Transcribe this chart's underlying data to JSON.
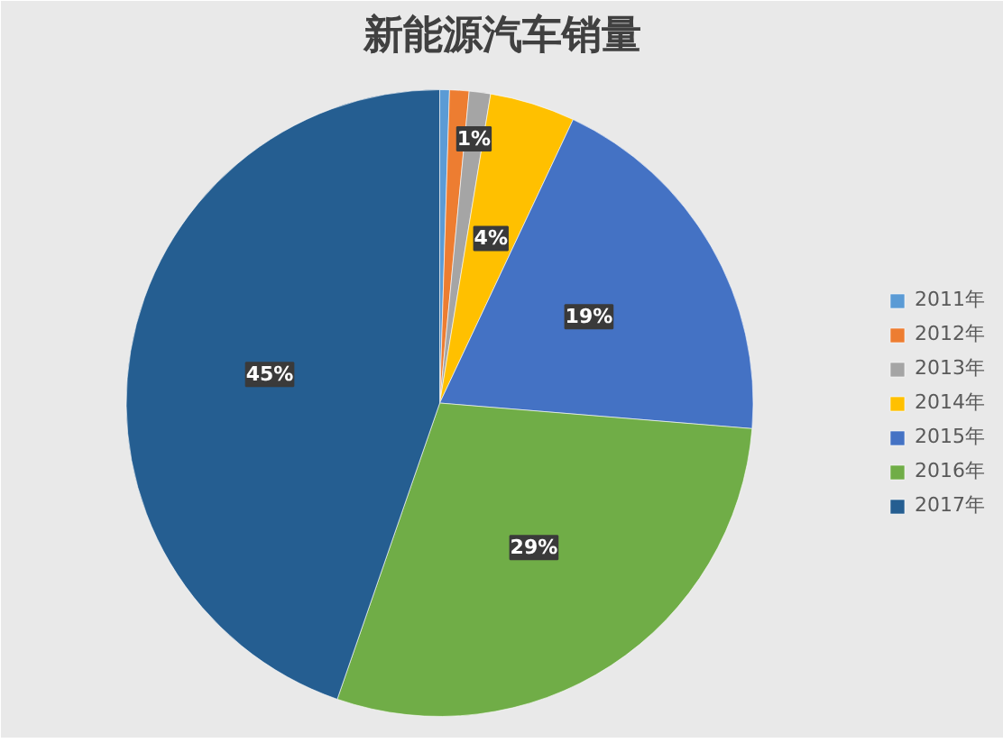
{
  "chart_data": {
    "type": "pie",
    "title": "新能源汽车销量",
    "categories": [
      "2011年",
      "2012年",
      "2013年",
      "2014年",
      "2015年",
      "2016年",
      "2017年"
    ],
    "values": [
      0.5,
      1.0,
      1.1,
      4.4,
      19.3,
      29.0,
      44.7
    ],
    "colors": [
      "#5b9bd5",
      "#ed7d31",
      "#a5a5a5",
      "#ffc000",
      "#4472c4",
      "#70ad47",
      "#255e91"
    ],
    "value_labels": [
      null,
      null,
      "1%",
      "4%",
      "19%",
      "29%",
      "45%"
    ],
    "legend": "right"
  }
}
